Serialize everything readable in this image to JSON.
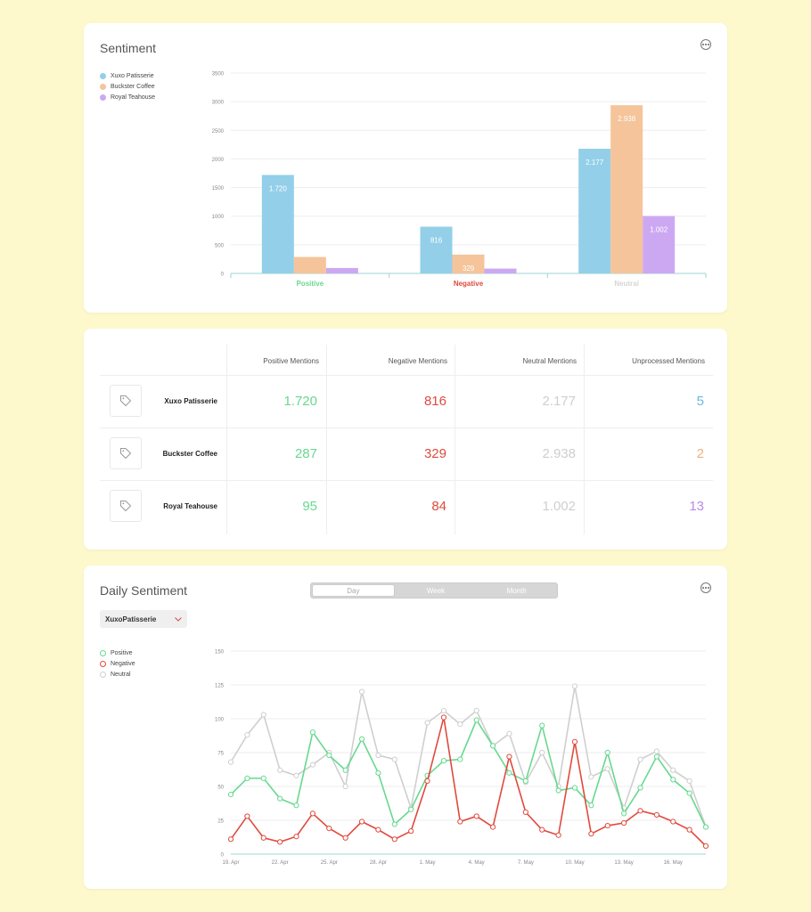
{
  "sentiment_card": {
    "title": "Sentiment",
    "legend": [
      {
        "name": "Xuxo Patisserie",
        "color": "#93cfe9"
      },
      {
        "name": "Buckster Coffee",
        "color": "#f5c49a"
      },
      {
        "name": "Royal Teahouse",
        "color": "#cda8f2"
      }
    ]
  },
  "table": {
    "headers": [
      "Positive Mentions",
      "Negative Mentions",
      "Neutral Mentions",
      "Unprocessed Mentions"
    ],
    "rows": [
      {
        "name": "Xuxo Patisserie",
        "positive": "1.720",
        "negative": "816",
        "neutral": "2.177",
        "unprocessed": "5",
        "unprocessed_color": "#6cb8de"
      },
      {
        "name": "Buckster Coffee",
        "positive": "287",
        "negative": "329",
        "neutral": "2.938",
        "unprocessed": "2",
        "unprocessed_color": "#f2ad7e"
      },
      {
        "name": "Royal Teahouse",
        "positive": "95",
        "negative": "84",
        "neutral": "1.002",
        "unprocessed": "13",
        "unprocessed_color": "#b98be8"
      }
    ]
  },
  "daily_card": {
    "title": "Daily Sentiment",
    "tabs": [
      "Day",
      "Week",
      "Month"
    ],
    "active_tab": "Day",
    "dropdown_value": "XuxoPatisserie",
    "legend": [
      {
        "name": "Positive",
        "color": "#66d98f"
      },
      {
        "name": "Negative",
        "color": "#e04a3e"
      },
      {
        "name": "Neutral",
        "color": "#cfcfcf"
      }
    ]
  },
  "chart_data": [
    {
      "type": "bar",
      "title": "Sentiment",
      "categories": [
        "Positive",
        "Negative",
        "Neutral"
      ],
      "category_colors": [
        "#66d98f",
        "#e04a3e",
        "#d5d5d5"
      ],
      "series": [
        {
          "name": "Xuxo Patisserie",
          "color": "#93cfe9",
          "values": [
            1720,
            816,
            2177
          ],
          "labels": [
            "1.720",
            "816",
            "2.177"
          ]
        },
        {
          "name": "Buckster Coffee",
          "color": "#f5c49a",
          "values": [
            287,
            329,
            2938
          ],
          "labels": [
            "",
            "329",
            "2.938"
          ]
        },
        {
          "name": "Royal Teahouse",
          "color": "#cda8f2",
          "values": [
            95,
            84,
            1002
          ],
          "labels": [
            "",
            "",
            "1.002"
          ]
        }
      ],
      "yticks": [
        0,
        500,
        1000,
        1500,
        2000,
        2500,
        3000,
        3500
      ],
      "ylim": [
        0,
        3500
      ],
      "grid": true,
      "legend_position": "top-left"
    },
    {
      "type": "line",
      "title": "Daily Sentiment",
      "x": [
        "19. Apr",
        "20. Apr",
        "21. Apr",
        "22. Apr",
        "23. Apr",
        "24. Apr",
        "25. Apr",
        "26. Apr",
        "27. Apr",
        "28. Apr",
        "29. Apr",
        "30. Apr",
        "1. May",
        "2. May",
        "3. May",
        "4. May",
        "5. May",
        "6. May",
        "7. May",
        "8. May",
        "9. May",
        "10. May",
        "11. May",
        "12. May",
        "13. May",
        "14. May",
        "15. May",
        "16. May",
        "17. May",
        "18. May"
      ],
      "xticks": [
        "19. Apr",
        "22. Apr",
        "25. Apr",
        "28. Apr",
        "1. May",
        "4. May",
        "7. May",
        "10. May",
        "13. May",
        "16. May"
      ],
      "series": [
        {
          "name": "Positive",
          "color": "#66d98f",
          "values": [
            44,
            56,
            56,
            41,
            36,
            90,
            73,
            62,
            85,
            60,
            22,
            33,
            58,
            69,
            70,
            99,
            80,
            60,
            54,
            95,
            47,
            49,
            36,
            75,
            30,
            49,
            72,
            55,
            45,
            20
          ]
        },
        {
          "name": "Negative",
          "color": "#e04a3e",
          "values": [
            11,
            28,
            12,
            9,
            13,
            30,
            19,
            12,
            24,
            18,
            11,
            17,
            54,
            101,
            24,
            28,
            20,
            72,
            31,
            18,
            14,
            83,
            15,
            21,
            23,
            32,
            29,
            24,
            18,
            6
          ]
        },
        {
          "name": "Neutral",
          "color": "#cfcfcf",
          "values": [
            68,
            88,
            103,
            62,
            58,
            66,
            75,
            50,
            120,
            73,
            70,
            34,
            97,
            106,
            96,
            106,
            80,
            89,
            53,
            75,
            50,
            124,
            57,
            63,
            34,
            70,
            76,
            62,
            54,
            20
          ]
        }
      ],
      "yticks": [
        0,
        25,
        50,
        75,
        100,
        125,
        150
      ],
      "ylim": [
        0,
        150
      ],
      "grid": true,
      "legend_position": "top-left"
    }
  ]
}
